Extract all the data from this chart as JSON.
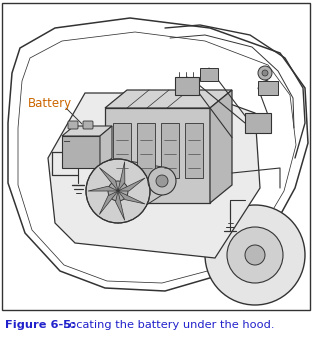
{
  "figure_width": 3.12,
  "figure_height": 3.43,
  "dpi": 100,
  "border_color": "#333333",
  "background_color": "#ffffff",
  "illustration_bg": "#ffffff",
  "caption_bold_text": "Figure 6-5:",
  "caption_normal_text": "  Locating the battery under the hood.",
  "caption_color": "#2222cc",
  "caption_fontsize": 8.2,
  "battery_label": "Battery",
  "battery_label_color": "#cc6600",
  "battery_label_fontsize": 8.5,
  "line_color": "#333333",
  "fill_light": "#d4d4d4",
  "fill_mid": "#b0b0b0",
  "fill_dark": "#888888"
}
